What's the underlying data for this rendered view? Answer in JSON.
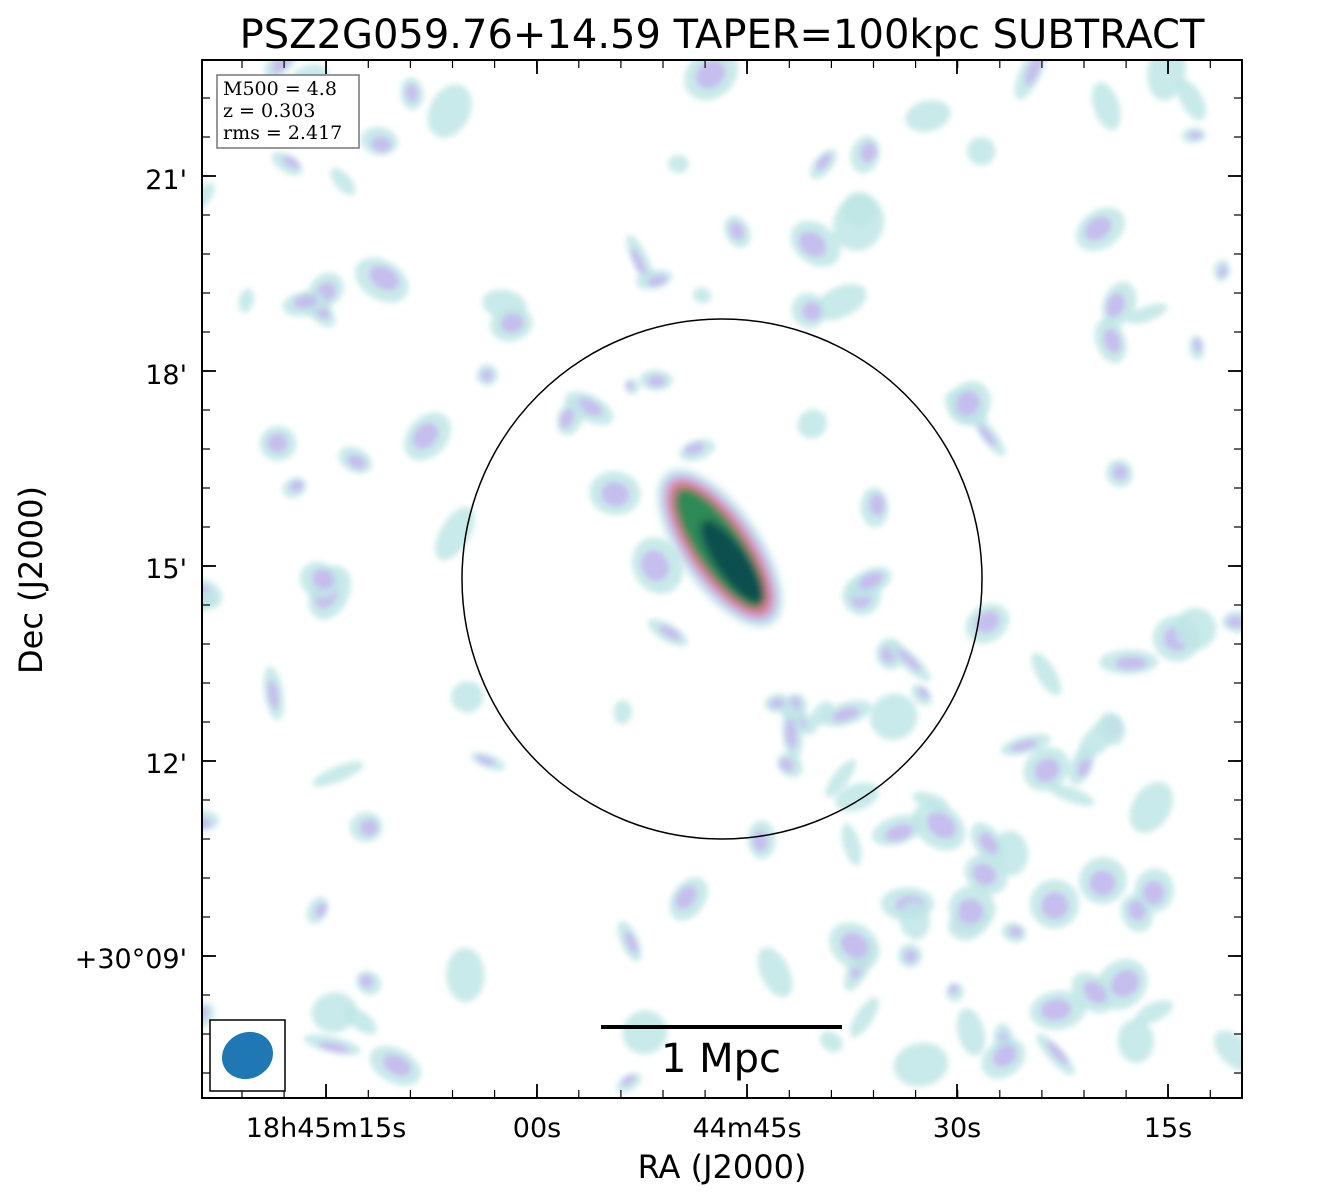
{
  "chart_data": {
    "type": "heatmap",
    "title": "PSZ2G059.76+14.59 TAPER=100kpc SUBTRACT",
    "xlabel": "RA (J2000)",
    "ylabel": "Dec (J2000)",
    "x_tick_labels": [
      "18h45m15s",
      "00s",
      "44m45s",
      "30s",
      "15s"
    ],
    "y_tick_labels": [
      "21'",
      "18'",
      "15'",
      "12'",
      "+30°09'"
    ],
    "info_box": {
      "m500": "M500 = 4.8",
      "z": "z = 0.303",
      "rms": "rms = 2.417"
    },
    "scale_bar_label": "1 Mpc",
    "colormap": "cubehelix-like (white → cyan → lavender → pink → green → dark teal)",
    "colors": {
      "faint": "#bfe6e6",
      "low": "#c6b4f0",
      "mid": "#e07a8c",
      "high": "#2f8a56",
      "peak": "#0d4f4f",
      "beam": "#1f77b4"
    },
    "has_circle": true,
    "has_beam": true
  }
}
